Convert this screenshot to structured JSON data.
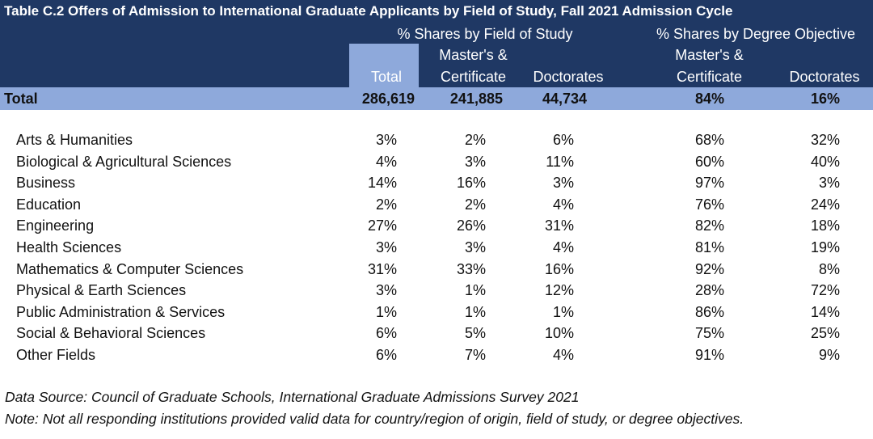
{
  "chart_data": {
    "type": "table",
    "title": "Table C.2 Offers of Admission to International Graduate Applicants by Field of Study, Fall 2021 Admission Cycle",
    "group_headers": [
      "% Shares by Field of Study",
      "% Shares by Degree Objective"
    ],
    "columns": {
      "total": "Total",
      "field_masters_line1": "Master's &",
      "field_masters_line2": "Certificate",
      "field_doctorates": "Doctorates",
      "deg_masters_line1": "Master's &",
      "deg_masters_line2": "Certificate",
      "deg_doctorates": "Doctorates"
    },
    "total_row": {
      "label": "Total",
      "values": [
        "286,619",
        "241,885",
        "44,734",
        "84%",
        "16%"
      ]
    },
    "rows": [
      {
        "label": "Arts & Humanities",
        "values": [
          "3%",
          "2%",
          "6%",
          "68%",
          "32%"
        ]
      },
      {
        "label": "Biological & Agricultural Sciences",
        "values": [
          "4%",
          "3%",
          "11%",
          "60%",
          "40%"
        ]
      },
      {
        "label": "Business",
        "values": [
          "14%",
          "16%",
          "3%",
          "97%",
          "3%"
        ]
      },
      {
        "label": "Education",
        "values": [
          "2%",
          "2%",
          "4%",
          "76%",
          "24%"
        ]
      },
      {
        "label": "Engineering",
        "values": [
          "27%",
          "26%",
          "31%",
          "82%",
          "18%"
        ]
      },
      {
        "label": "Health Sciences",
        "values": [
          "3%",
          "3%",
          "4%",
          "81%",
          "19%"
        ]
      },
      {
        "label": "Mathematics & Computer Sciences",
        "values": [
          "31%",
          "33%",
          "16%",
          "92%",
          "8%"
        ]
      },
      {
        "label": "Physical & Earth Sciences",
        "values": [
          "3%",
          "1%",
          "12%",
          "28%",
          "72%"
        ]
      },
      {
        "label": "Public Administration & Services",
        "values": [
          "1%",
          "1%",
          "1%",
          "86%",
          "14%"
        ]
      },
      {
        "label": "Social & Behavioral Sciences",
        "values": [
          "6%",
          "5%",
          "10%",
          "75%",
          "25%"
        ]
      },
      {
        "label": "Other Fields",
        "values": [
          "6%",
          "7%",
          "4%",
          "91%",
          "9%"
        ]
      }
    ],
    "source": "Data Source: Council of Graduate Schools, International Graduate Admissions Survey 2021",
    "note": "Note: Not all responding institutions provided valid data for country/region of origin, field of study, or degree objectives."
  },
  "colors": {
    "header_bg": "#1f3864",
    "accent_bg": "#8ea9db",
    "header_text": "#ffffff"
  }
}
